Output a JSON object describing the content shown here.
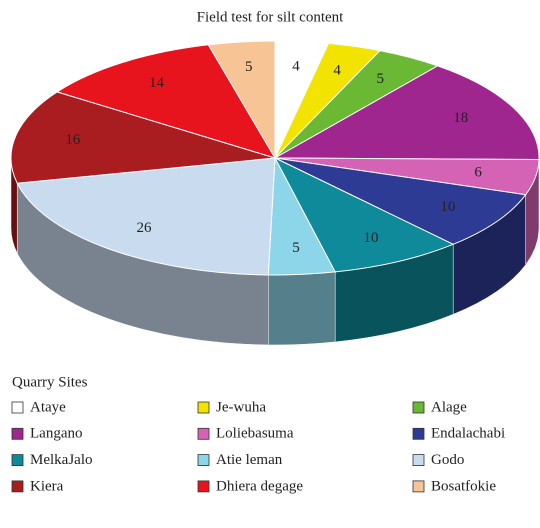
{
  "chart_data": {
    "type": "pie",
    "title": "Field test for silt content",
    "legend_title": "Quarry Sites",
    "categories": [
      "Ataye",
      "Je-wuha",
      "Alage",
      "Langano",
      "Loliebasuma",
      "Endalachabi",
      "MelkaJalo",
      "Atie leman",
      "Godo",
      "Kiera",
      "Dhiera degage",
      "Bosatfokie"
    ],
    "values": [
      4,
      4,
      5,
      18,
      6,
      10,
      10,
      5,
      26,
      16,
      14,
      5
    ],
    "colors": [
      "#ffffff",
      "#f2e300",
      "#6bb834",
      "#a0268f",
      "#d563b5",
      "#2e3b94",
      "#0e8a9a",
      "#8dd5e8",
      "#c9dbef",
      "#a91c1f",
      "#e8141d",
      "#f7c496"
    ],
    "legend": "bottom"
  }
}
